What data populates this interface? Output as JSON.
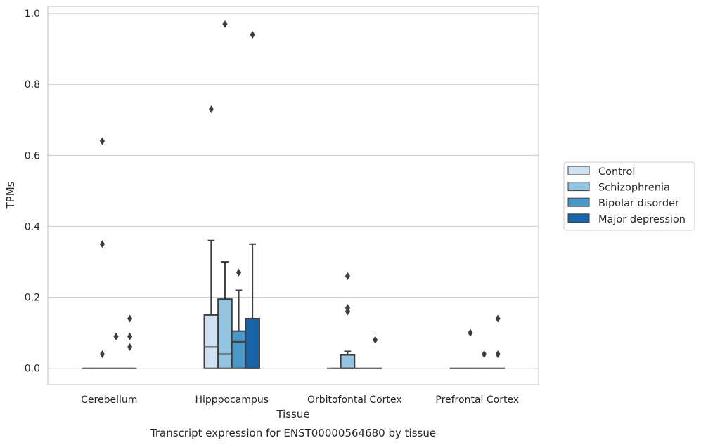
{
  "caption": "Transcript expression for ENST00000564680 by tissue",
  "colors": {
    "Control": "#d0e1f2",
    "Schizophrenia": "#94c4df",
    "Bipolar disorder": "#4a98c9",
    "Major depression": "#1764ab",
    "edge": "#3d3d3d",
    "grid": "#d0d0d0"
  },
  "chart_data": {
    "type": "box",
    "xlabel": "Tissue",
    "ylabel": "TPMs",
    "ylim": [
      -0.046,
      1.02
    ],
    "yticks": [
      0.0,
      0.2,
      0.4,
      0.6,
      0.8,
      1.0
    ],
    "ytick_labels": [
      "0.0",
      "0.2",
      "0.4",
      "0.6",
      "0.8",
      "1.0"
    ],
    "grid": "horizontal",
    "legend_position": "right",
    "categories": [
      "Cerebellum",
      "Hipppocampus",
      "Orbitofontal Cortex",
      "Prefrontal Cortex"
    ],
    "series": [
      {
        "name": "Control",
        "boxes": [
          {
            "q1": 0,
            "median": 0,
            "q3": 0,
            "whisker_low": 0,
            "whisker_high": 0,
            "outliers": []
          },
          {
            "q1": 0,
            "median": 0.06,
            "q3": 0.15,
            "whisker_low": 0,
            "whisker_high": 0.36,
            "outliers": [
              0.73
            ]
          },
          {
            "q1": 0,
            "median": 0,
            "q3": 0,
            "whisker_low": 0,
            "whisker_high": 0,
            "outliers": []
          },
          {
            "q1": 0,
            "median": 0,
            "q3": 0,
            "whisker_low": 0,
            "whisker_high": 0,
            "outliers": []
          }
        ]
      },
      {
        "name": "Schizophrenia",
        "boxes": [
          {
            "q1": 0,
            "median": 0,
            "q3": 0,
            "whisker_low": 0,
            "whisker_high": 0,
            "outliers": [
              0.64,
              0.35,
              0.04
            ]
          },
          {
            "q1": 0,
            "median": 0.04,
            "q3": 0.195,
            "whisker_low": 0,
            "whisker_high": 0.3,
            "outliers": [
              0.97
            ]
          },
          {
            "q1": 0,
            "median": 0,
            "q3": 0.038,
            "whisker_low": 0,
            "whisker_high": 0.048,
            "outliers": [
              0.26,
              0.17,
              0.16
            ]
          },
          {
            "q1": 0,
            "median": 0,
            "q3": 0,
            "whisker_low": 0,
            "whisker_high": 0,
            "outliers": [
              0.1
            ]
          }
        ]
      },
      {
        "name": "Bipolar disorder",
        "boxes": [
          {
            "q1": 0,
            "median": 0,
            "q3": 0,
            "whisker_low": 0,
            "whisker_high": 0,
            "outliers": [
              0.09
            ]
          },
          {
            "q1": 0,
            "median": 0.075,
            "q3": 0.105,
            "whisker_low": 0,
            "whisker_high": 0.22,
            "outliers": [
              0.27
            ]
          },
          {
            "q1": 0,
            "median": 0,
            "q3": 0,
            "whisker_low": 0,
            "whisker_high": 0,
            "outliers": []
          },
          {
            "q1": 0,
            "median": 0,
            "q3": 0,
            "whisker_low": 0,
            "whisker_high": 0,
            "outliers": [
              0.04
            ]
          }
        ]
      },
      {
        "name": "Major depression",
        "boxes": [
          {
            "q1": 0,
            "median": 0,
            "q3": 0,
            "whisker_low": 0,
            "whisker_high": 0,
            "outliers": [
              0.14,
              0.09,
              0.06
            ]
          },
          {
            "q1": 0,
            "median": 0,
            "q3": 0.14,
            "whisker_low": 0,
            "whisker_high": 0.35,
            "outliers": [
              0.94
            ]
          },
          {
            "q1": 0,
            "median": 0,
            "q3": 0,
            "whisker_low": 0,
            "whisker_high": 0,
            "outliers": [
              0.08
            ]
          },
          {
            "q1": 0,
            "median": 0,
            "q3": 0,
            "whisker_low": 0,
            "whisker_high": 0,
            "outliers": [
              0.14,
              0.04
            ]
          }
        ]
      }
    ]
  }
}
